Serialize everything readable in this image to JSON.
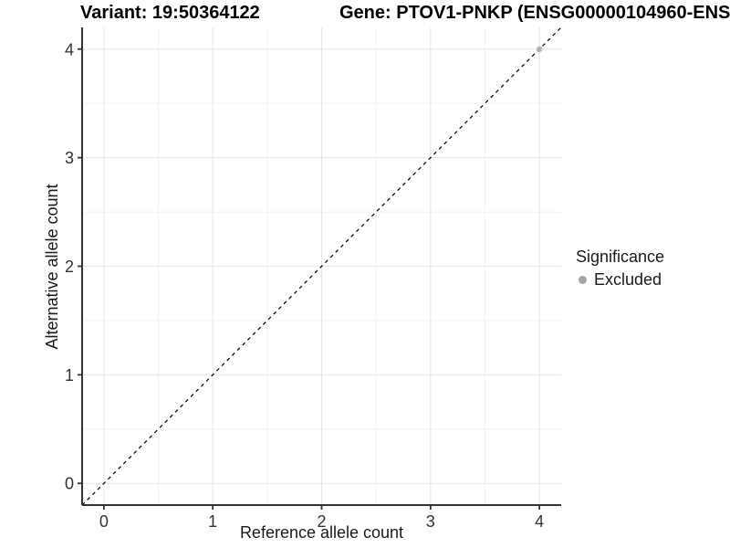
{
  "header": {
    "variant_title": "Variant: 19:50364122",
    "gene_title": "Gene: PTOV1-PNKP (ENSG00000104960-ENS"
  },
  "chart_data": {
    "type": "scatter",
    "title_left": "Variant: 19:50364122",
    "title_right": "Gene: PTOV1-PNKP (ENSG00000104960-ENS",
    "xlabel": "Reference allele count",
    "ylabel": "Alternative allele count",
    "xlim": [
      -0.2,
      4.2
    ],
    "ylim": [
      -0.2,
      4.2
    ],
    "xticks": [
      0,
      1,
      2,
      3,
      4
    ],
    "yticks": [
      0,
      1,
      2,
      3,
      4
    ],
    "grid": "major+minor",
    "identity_line": {
      "style": "dashed",
      "slope": 1,
      "intercept": 0
    },
    "series": [
      {
        "name": "Excluded",
        "points": [
          {
            "x": 4,
            "y": 4
          }
        ]
      }
    ],
    "legend": {
      "title": "Significance",
      "position": "right",
      "items": [
        {
          "label": "Excluded",
          "color": "#a6a6a6"
        }
      ]
    },
    "colors": {
      "point": "#b3b3b3",
      "grid_major": "#e6e6e6",
      "grid_minor": "#f2f2f2",
      "axis_line": "#333333",
      "tick_label": "#333333",
      "dashed_line": "#000000",
      "background": "#ffffff"
    }
  }
}
